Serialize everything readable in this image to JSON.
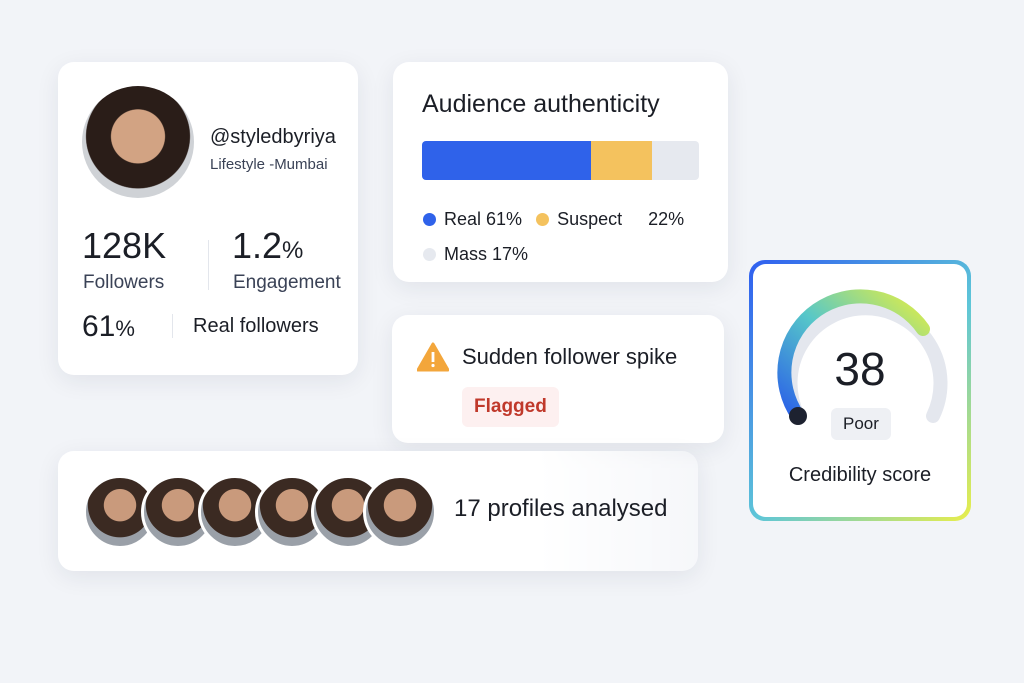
{
  "profile": {
    "handle": "@styledbyriya",
    "subtitle": "Lifestyle -Mumbai",
    "stats": [
      {
        "value": "128K",
        "label": "Followers"
      },
      {
        "value": "1.2",
        "unit": "%",
        "label": "Engagement"
      }
    ],
    "real_followers": {
      "value": "61",
      "unit": "%",
      "label": "Real followers"
    }
  },
  "authenticity": {
    "title": "Audience authenticity",
    "segments": [
      {
        "name": "Real",
        "value": 61,
        "value_label": "61%",
        "color": "#2f62ea"
      },
      {
        "name": "Suspect",
        "value": 22,
        "value_label": "22%",
        "color": "#f4c25e"
      },
      {
        "name": "Mass",
        "value": 17,
        "value_label": "17%",
        "color": "#e6e9ef"
      }
    ]
  },
  "alert": {
    "title": "Sudden follower spike",
    "badge": "Flagged"
  },
  "profiles": {
    "text": "17 profiles analysed"
  },
  "credibility": {
    "score": "38",
    "rating": "Poor",
    "label": "Credibility score"
  }
}
